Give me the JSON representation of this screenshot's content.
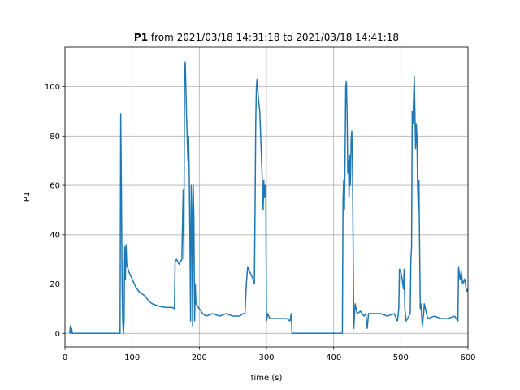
{
  "chart_data": {
    "type": "line",
    "title": [
      "P1",
      "from 2021/03/18 14:31:18 to 2021/03/18 14:41:18"
    ],
    "xlabel": "time (s)",
    "ylabel": "P1",
    "color": "#1f77b4",
    "xlim": [
      0,
      600
    ],
    "ylim": [
      -5.5,
      116
    ],
    "xticks": [
      0,
      100,
      200,
      300,
      400,
      500,
      600
    ],
    "yticks": [
      0,
      20,
      40,
      60,
      80,
      100
    ],
    "grid": true,
    "x": [
      7,
      8,
      9,
      10,
      11,
      82,
      83,
      84,
      85,
      86,
      87,
      88,
      89,
      90,
      91,
      92,
      95,
      100,
      105,
      110,
      115,
      120,
      125,
      130,
      135,
      140,
      150,
      160,
      163,
      164,
      166,
      170,
      174,
      176,
      177,
      178,
      179,
      180,
      181,
      183,
      184,
      185,
      186,
      187,
      188,
      189,
      190,
      191,
      192,
      193,
      194,
      195,
      200,
      205,
      210,
      220,
      230,
      240,
      250,
      260,
      265,
      268,
      270,
      272,
      275,
      280,
      282,
      283,
      284,
      285,
      286,
      288,
      290,
      292,
      294,
      295,
      296,
      297,
      298,
      299,
      300,
      302,
      305,
      310,
      320,
      330,
      335,
      337,
      338,
      400,
      412,
      413,
      414,
      415,
      416,
      417,
      418,
      419,
      420,
      421,
      422,
      423,
      424,
      425,
      426,
      427,
      428,
      430,
      432,
      435,
      440,
      445,
      448,
      450,
      452,
      460,
      470,
      480,
      490,
      495,
      497,
      498,
      500,
      502,
      504,
      505,
      506,
      508,
      510,
      514,
      515,
      516,
      517,
      518,
      519,
      520,
      521,
      522,
      523,
      524,
      525,
      526,
      527,
      528,
      529,
      530,
      532,
      534,
      535,
      540,
      550,
      560,
      570,
      580,
      585,
      586,
      588,
      590,
      592,
      595,
      598,
      600
    ],
    "values": [
      0,
      3,
      0,
      2,
      0,
      0,
      89,
      60,
      20,
      5,
      0,
      5,
      35,
      22,
      36,
      28,
      25,
      22,
      19,
      17,
      16,
      15,
      13,
      12,
      11.5,
      11,
      10.5,
      10.5,
      10,
      29,
      30,
      28,
      30,
      58,
      30,
      105,
      110,
      100,
      88,
      70,
      80,
      65,
      40,
      5,
      60,
      50,
      3,
      60,
      45,
      5,
      20,
      12,
      10,
      8,
      7,
      8,
      7,
      8,
      7,
      7,
      8,
      8,
      20,
      27,
      25,
      22,
      20,
      50,
      85,
      100,
      103,
      95,
      90,
      75,
      60,
      50,
      62,
      55,
      60,
      58,
      5,
      8,
      6,
      6,
      6,
      6,
      5,
      8,
      0,
      0,
      0,
      0,
      55,
      62,
      50,
      70,
      100,
      102,
      90,
      65,
      70,
      55,
      72,
      60,
      78,
      82,
      70,
      2,
      12,
      8,
      9,
      7,
      8,
      2,
      8,
      8,
      8,
      7,
      8,
      5,
      10,
      26,
      25,
      22,
      18,
      26,
      10,
      5,
      6,
      8,
      30,
      35,
      90,
      85,
      95,
      104,
      90,
      75,
      85,
      80,
      60,
      50,
      62,
      35,
      10,
      12,
      3,
      8,
      12,
      6,
      7,
      6,
      6,
      7,
      5,
      27,
      22,
      25,
      20,
      22,
      17,
      18
    ]
  }
}
